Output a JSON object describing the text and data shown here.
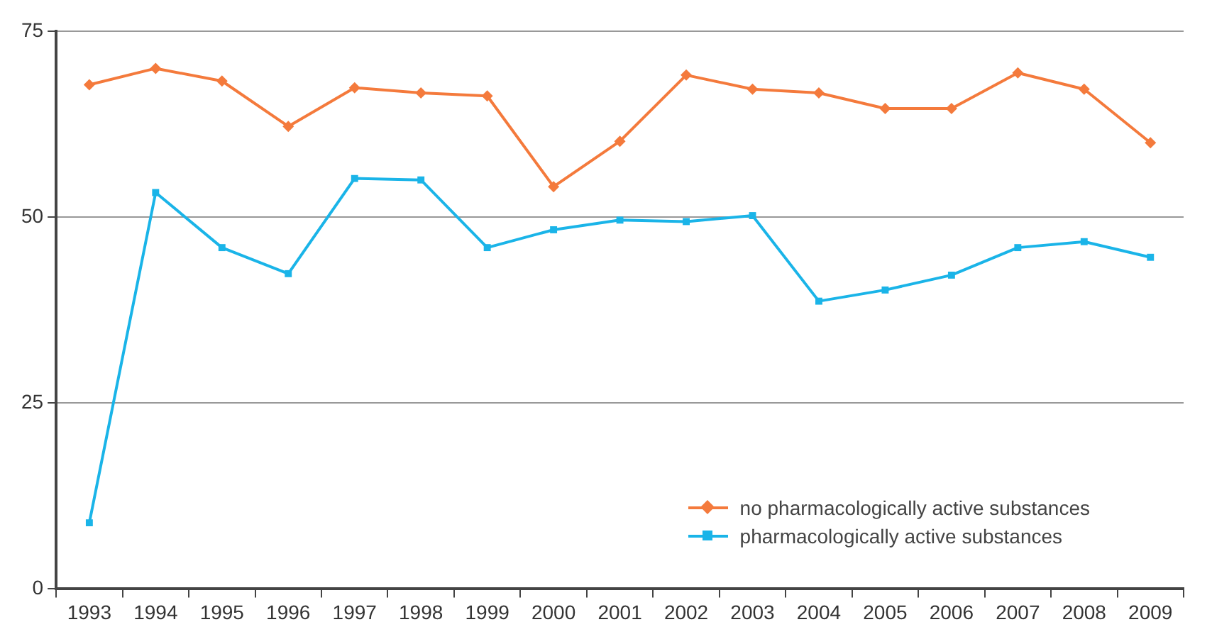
{
  "chart_data": {
    "type": "line",
    "categories": [
      "1993",
      "1994",
      "1995",
      "1996",
      "1997",
      "1998",
      "1999",
      "2000",
      "2001",
      "2002",
      "2003",
      "2004",
      "2005",
      "2006",
      "2007",
      "2008",
      "2009"
    ],
    "series": [
      {
        "name": "no pharmacologically active substances",
        "color": "#f47a3c",
        "marker": "diamond",
        "values": [
          67.8,
          70.0,
          68.3,
          62.2,
          67.4,
          66.7,
          66.3,
          54.1,
          60.2,
          69.1,
          67.2,
          66.7,
          64.6,
          64.6,
          69.4,
          67.2,
          60.0
        ]
      },
      {
        "name": "pharmacologically active substances",
        "color": "#1ab4e8",
        "marker": "square",
        "values": [
          8.9,
          53.3,
          45.9,
          42.4,
          55.2,
          55.0,
          45.9,
          48.3,
          49.6,
          49.4,
          50.2,
          38.7,
          40.2,
          42.2,
          45.9,
          46.7,
          44.6
        ]
      }
    ],
    "ylim": [
      0,
      75
    ],
    "yticks": [
      0,
      25,
      50,
      75
    ],
    "grid": "y",
    "legend": "bottom right",
    "line_style": "solid"
  }
}
